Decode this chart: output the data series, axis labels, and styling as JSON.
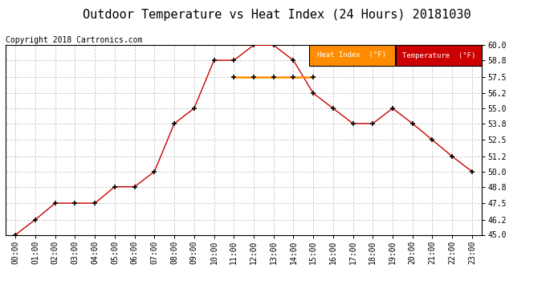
{
  "title": "Outdoor Temperature vs Heat Index (24 Hours) 20181030",
  "copyright": "Copyright 2018 Cartronics.com",
  "ylim": [
    45.0,
    60.0
  ],
  "yticks": [
    45.0,
    46.2,
    47.5,
    48.8,
    50.0,
    51.2,
    52.5,
    53.8,
    55.0,
    56.2,
    57.5,
    58.8,
    60.0
  ],
  "hours": [
    "00:00",
    "01:00",
    "02:00",
    "03:00",
    "04:00",
    "05:00",
    "06:00",
    "07:00",
    "08:00",
    "09:00",
    "10:00",
    "11:00",
    "12:00",
    "13:00",
    "14:00",
    "15:00",
    "16:00",
    "17:00",
    "18:00",
    "19:00",
    "20:00",
    "21:00",
    "22:00",
    "23:00"
  ],
  "temperature": [
    45.0,
    46.2,
    47.5,
    47.5,
    47.5,
    48.8,
    48.8,
    50.0,
    53.8,
    55.0,
    58.8,
    58.8,
    60.0,
    60.0,
    58.8,
    56.2,
    55.0,
    53.8,
    53.8,
    55.0,
    53.8,
    52.5,
    51.2,
    50.0
  ],
  "heat_index": [
    null,
    null,
    null,
    null,
    null,
    null,
    null,
    null,
    null,
    null,
    null,
    57.5,
    57.5,
    57.5,
    57.5,
    57.5,
    null,
    null,
    null,
    null,
    null,
    null,
    null,
    null
  ],
  "temp_color": "#cc0000",
  "heat_color": "#ff8c00",
  "background_color": "#ffffff",
  "grid_color": "#c8c8c8",
  "title_fontsize": 11,
  "copyright_fontsize": 7,
  "legend_heat_bg": "#ff8c00",
  "legend_temp_bg": "#cc0000",
  "legend_text_color": "#ffffff",
  "tick_fontsize": 7
}
